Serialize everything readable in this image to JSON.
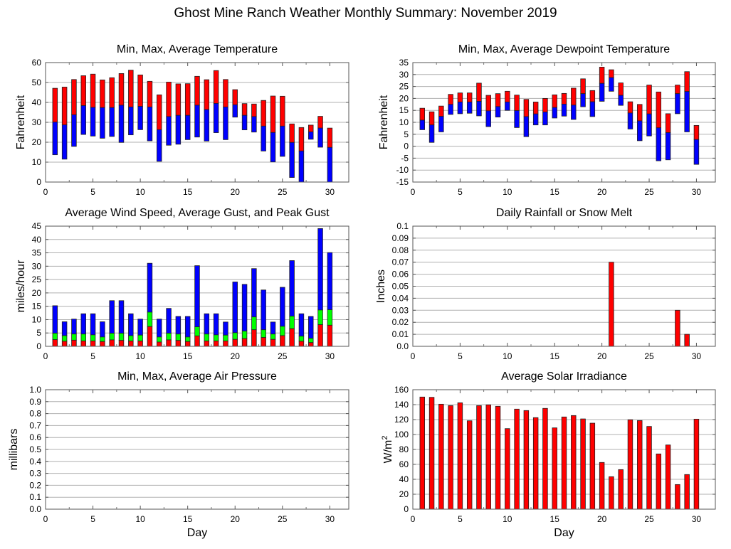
{
  "title": "Ghost Mine Ranch Weather Monthly Summary: November 2019",
  "colors": {
    "max": "#ff0000",
    "avg_low": "#0000ff",
    "gust": "#00ff00",
    "bar": "#ff0000",
    "grid": "#b0b0b0"
  },
  "chart_data": [
    {
      "id": "temp",
      "type": "bar",
      "title": "Min, Max, Average Temperature",
      "xlabel": "",
      "ylabel": "Fahrenheit",
      "xlim": [
        0,
        32
      ],
      "ylim": [
        0,
        60
      ],
      "yticks": [
        "0",
        "10",
        "20",
        "30",
        "40",
        "50",
        "60"
      ],
      "xticks": [
        "0",
        "5",
        "10",
        "15",
        "20",
        "25",
        "30"
      ],
      "grid": true,
      "x": [
        1,
        2,
        3,
        4,
        5,
        6,
        7,
        8,
        9,
        10,
        11,
        12,
        13,
        14,
        15,
        16,
        17,
        18,
        19,
        20,
        21,
        22,
        23,
        24,
        25,
        26,
        27,
        28,
        29,
        30
      ],
      "series": [
        {
          "name": "Max",
          "values": [
            47.1,
            47.7,
            51.5,
            53.4,
            54.2,
            51.3,
            52.4,
            54.5,
            56.2,
            53.8,
            50.6,
            43.8,
            50.2,
            49.3,
            49.4,
            53.1,
            51.4,
            56.0,
            51.5,
            46.4,
            39.4,
            39.2,
            41.0,
            43.2,
            43.1,
            29.2,
            27.4,
            28.6,
            33.0,
            27.1
          ]
        },
        {
          "name": "Average",
          "values": [
            30.1,
            28.7,
            33.8,
            38.4,
            37.5,
            37.4,
            37.4,
            38.6,
            37.7,
            38.0,
            37.7,
            26.3,
            32.9,
            33.5,
            33.5,
            38.6,
            36.4,
            39.5,
            37.7,
            38.8,
            33.5,
            32.9,
            28.1,
            24.9,
            28.1,
            19.9,
            15.6,
            25.2,
            27.1,
            17.4
          ]
        },
        {
          "name": "Min",
          "values": [
            13.7,
            11.5,
            17.9,
            23.9,
            23.1,
            22.0,
            22.9,
            19.9,
            23.7,
            26.3,
            20.7,
            10.4,
            18.5,
            19.0,
            21.3,
            22.6,
            20.6,
            24.8,
            21.3,
            32.6,
            26.2,
            25.1,
            15.6,
            10.1,
            12.9,
            2.3,
            -1.0,
            21.5,
            17.5,
            -2.0
          ]
        }
      ]
    },
    {
      "id": "dew",
      "type": "bar",
      "title": "Min, Max, Average Dewpoint Temperature",
      "xlabel": "",
      "ylabel": "Fahrenheit",
      "xlim": [
        0,
        32
      ],
      "ylim": [
        -15,
        35
      ],
      "yticks": [
        "-15",
        "-10",
        "-5",
        "0",
        "5",
        "10",
        "15",
        "20",
        "25",
        "30",
        "35"
      ],
      "xticks": [
        "0",
        "5",
        "10",
        "15",
        "20",
        "25",
        "30"
      ],
      "grid": true,
      "x": [
        1,
        2,
        3,
        4,
        5,
        6,
        7,
        8,
        9,
        10,
        11,
        12,
        13,
        14,
        15,
        16,
        17,
        18,
        19,
        20,
        21,
        22,
        23,
        24,
        25,
        26,
        27,
        28,
        29,
        30
      ],
      "series": [
        {
          "name": "Max",
          "values": [
            15.9,
            14.4,
            16.8,
            21.7,
            22.3,
            22.3,
            26.4,
            21.3,
            22.0,
            23.0,
            21.4,
            19.6,
            18.5,
            20.0,
            21.5,
            22.1,
            24.3,
            28.2,
            23.3,
            33.1,
            32.0,
            26.5,
            18.6,
            17.5,
            25.6,
            22.7,
            13.6,
            25.6,
            31.2,
            8.7
          ]
        },
        {
          "name": "Average",
          "values": [
            10.9,
            8.9,
            12.5,
            17.5,
            18.5,
            18.5,
            18.8,
            14.8,
            16.6,
            18.5,
            14.9,
            12.4,
            13.5,
            14.3,
            16.2,
            17.6,
            17.2,
            22.0,
            18.6,
            26.3,
            28.7,
            21.3,
            13.9,
            10.6,
            13.5,
            7.7,
            5.7,
            22.0,
            22.9,
            2.8
          ]
        },
        {
          "name": "Min",
          "values": [
            6.9,
            1.6,
            6.0,
            13.3,
            13.6,
            13.8,
            12.7,
            8.2,
            12.2,
            15.0,
            7.8,
            4.0,
            8.9,
            8.9,
            11.8,
            12.6,
            11.2,
            16.5,
            12.4,
            18.8,
            23.0,
            17.1,
            7.2,
            2.3,
            4.3,
            -6.1,
            -5.7,
            13.6,
            6.0,
            -7.6
          ]
        }
      ]
    },
    {
      "id": "wind",
      "type": "bar",
      "title": "Average Wind Speed, Average Gust, and Peak Gust",
      "xlabel": "",
      "ylabel": "miles/hour",
      "xlim": [
        0,
        32
      ],
      "ylim": [
        0,
        45
      ],
      "yticks": [
        "0",
        "5",
        "10",
        "15",
        "20",
        "25",
        "30",
        "35",
        "40",
        "45"
      ],
      "xticks": [
        "0",
        "5",
        "10",
        "15",
        "20",
        "25",
        "30"
      ],
      "grid": true,
      "x": [
        1,
        2,
        3,
        4,
        5,
        6,
        7,
        8,
        9,
        10,
        11,
        12,
        13,
        14,
        15,
        16,
        17,
        18,
        19,
        20,
        21,
        22,
        23,
        24,
        25,
        26,
        27,
        28,
        29,
        30
      ],
      "series": [
        {
          "name": "Peak Gust",
          "values": [
            15.2,
            9.2,
            10.2,
            12.2,
            12.2,
            9.2,
            17.1,
            17.1,
            12.2,
            10.2,
            31.1,
            10.2,
            14.2,
            11.2,
            11.2,
            30.2,
            12.2,
            12.2,
            9.1,
            24.1,
            23.2,
            29.1,
            21.1,
            9.1,
            22.1,
            32.1,
            12.2,
            11.2,
            44.1,
            35.1
          ]
        },
        {
          "name": "Average Gust",
          "values": [
            4.9,
            4.0,
            4.6,
            4.6,
            4.3,
            3.5,
            4.9,
            4.9,
            4.0,
            4.2,
            12.8,
            3.5,
            4.9,
            4.6,
            3.5,
            7.3,
            4.6,
            4.3,
            4.2,
            5.1,
            5.7,
            11.0,
            6.2,
            4.6,
            7.5,
            11.3,
            3.8,
            3.0,
            13.6,
            13.7
          ]
        },
        {
          "name": "Average Wind Speed",
          "values": [
            2.5,
            1.9,
            2.3,
            2.0,
            2.0,
            1.8,
            2.4,
            2.2,
            2.0,
            2.0,
            7.4,
            1.6,
            2.4,
            2.2,
            1.8,
            3.9,
            2.0,
            2.0,
            2.0,
            2.6,
            2.9,
            6.2,
            3.3,
            2.6,
            4.0,
            6.6,
            1.9,
            1.4,
            8.1,
            7.9
          ]
        }
      ]
    },
    {
      "id": "rain",
      "type": "bar",
      "title": "Daily Rainfall or Snow Melt",
      "xlabel": "",
      "ylabel": "Inches",
      "xlim": [
        0,
        32
      ],
      "ylim": [
        0,
        0.1
      ],
      "yticks": [
        "0.0",
        "0.01",
        "0.02",
        "0.03",
        "0.04",
        "0.05",
        "0.06",
        "0.07",
        "0.08",
        "0.09",
        "0.1"
      ],
      "xticks": [
        "0",
        "5",
        "10",
        "15",
        "20",
        "25",
        "30"
      ],
      "grid": true,
      "x": [
        1,
        2,
        3,
        4,
        5,
        6,
        7,
        8,
        9,
        10,
        11,
        12,
        13,
        14,
        15,
        16,
        17,
        18,
        19,
        20,
        21,
        22,
        23,
        24,
        25,
        26,
        27,
        28,
        29,
        30
      ],
      "values": [
        0,
        0,
        0,
        0,
        0,
        0,
        0,
        0,
        0,
        0,
        0,
        0,
        0,
        0,
        0,
        0,
        0,
        0,
        0,
        0,
        0.07,
        0,
        0,
        0,
        0,
        0,
        0,
        0.03,
        0.01,
        0
      ]
    },
    {
      "id": "pressure",
      "type": "bar",
      "title": "Min, Max, Average Air Pressure",
      "xlabel": "Day",
      "ylabel": "millibars",
      "xlim": [
        0,
        32
      ],
      "ylim": [
        0,
        1.0
      ],
      "yticks": [
        "0.0",
        "0.1",
        "0.2",
        "0.3",
        "0.4",
        "0.5",
        "0.6",
        "0.7",
        "0.8",
        "0.9",
        "1.0"
      ],
      "xticks": [
        "0",
        "5",
        "10",
        "15",
        "20",
        "25",
        "30"
      ],
      "grid": true,
      "x": [],
      "values": []
    },
    {
      "id": "solar",
      "type": "bar",
      "title": "Average Solar Irradiance",
      "xlabel": "Day",
      "ylabel": "W/m2",
      "xlim": [
        0,
        32
      ],
      "ylim": [
        0,
        160
      ],
      "yticks": [
        "0",
        "20",
        "40",
        "60",
        "80",
        "100",
        "120",
        "140",
        "160"
      ],
      "xticks": [
        "0",
        "5",
        "10",
        "15",
        "20",
        "25",
        "30"
      ],
      "grid": true,
      "x": [
        1,
        2,
        3,
        4,
        5,
        6,
        7,
        8,
        9,
        10,
        11,
        12,
        13,
        14,
        15,
        16,
        17,
        18,
        19,
        20,
        21,
        22,
        23,
        24,
        25,
        26,
        27,
        28,
        29,
        30
      ],
      "values": [
        150.2,
        149.8,
        140.6,
        138.7,
        142.5,
        118.4,
        138.7,
        139.7,
        137.8,
        107.9,
        134.0,
        132.1,
        122.6,
        135.0,
        108.9,
        123.5,
        125.4,
        120.9,
        115.2,
        62.6,
        43.5,
        53.0,
        119.7,
        118.7,
        110.8,
        74.0,
        86.0,
        33.0,
        46.4,
        120.6
      ]
    }
  ]
}
